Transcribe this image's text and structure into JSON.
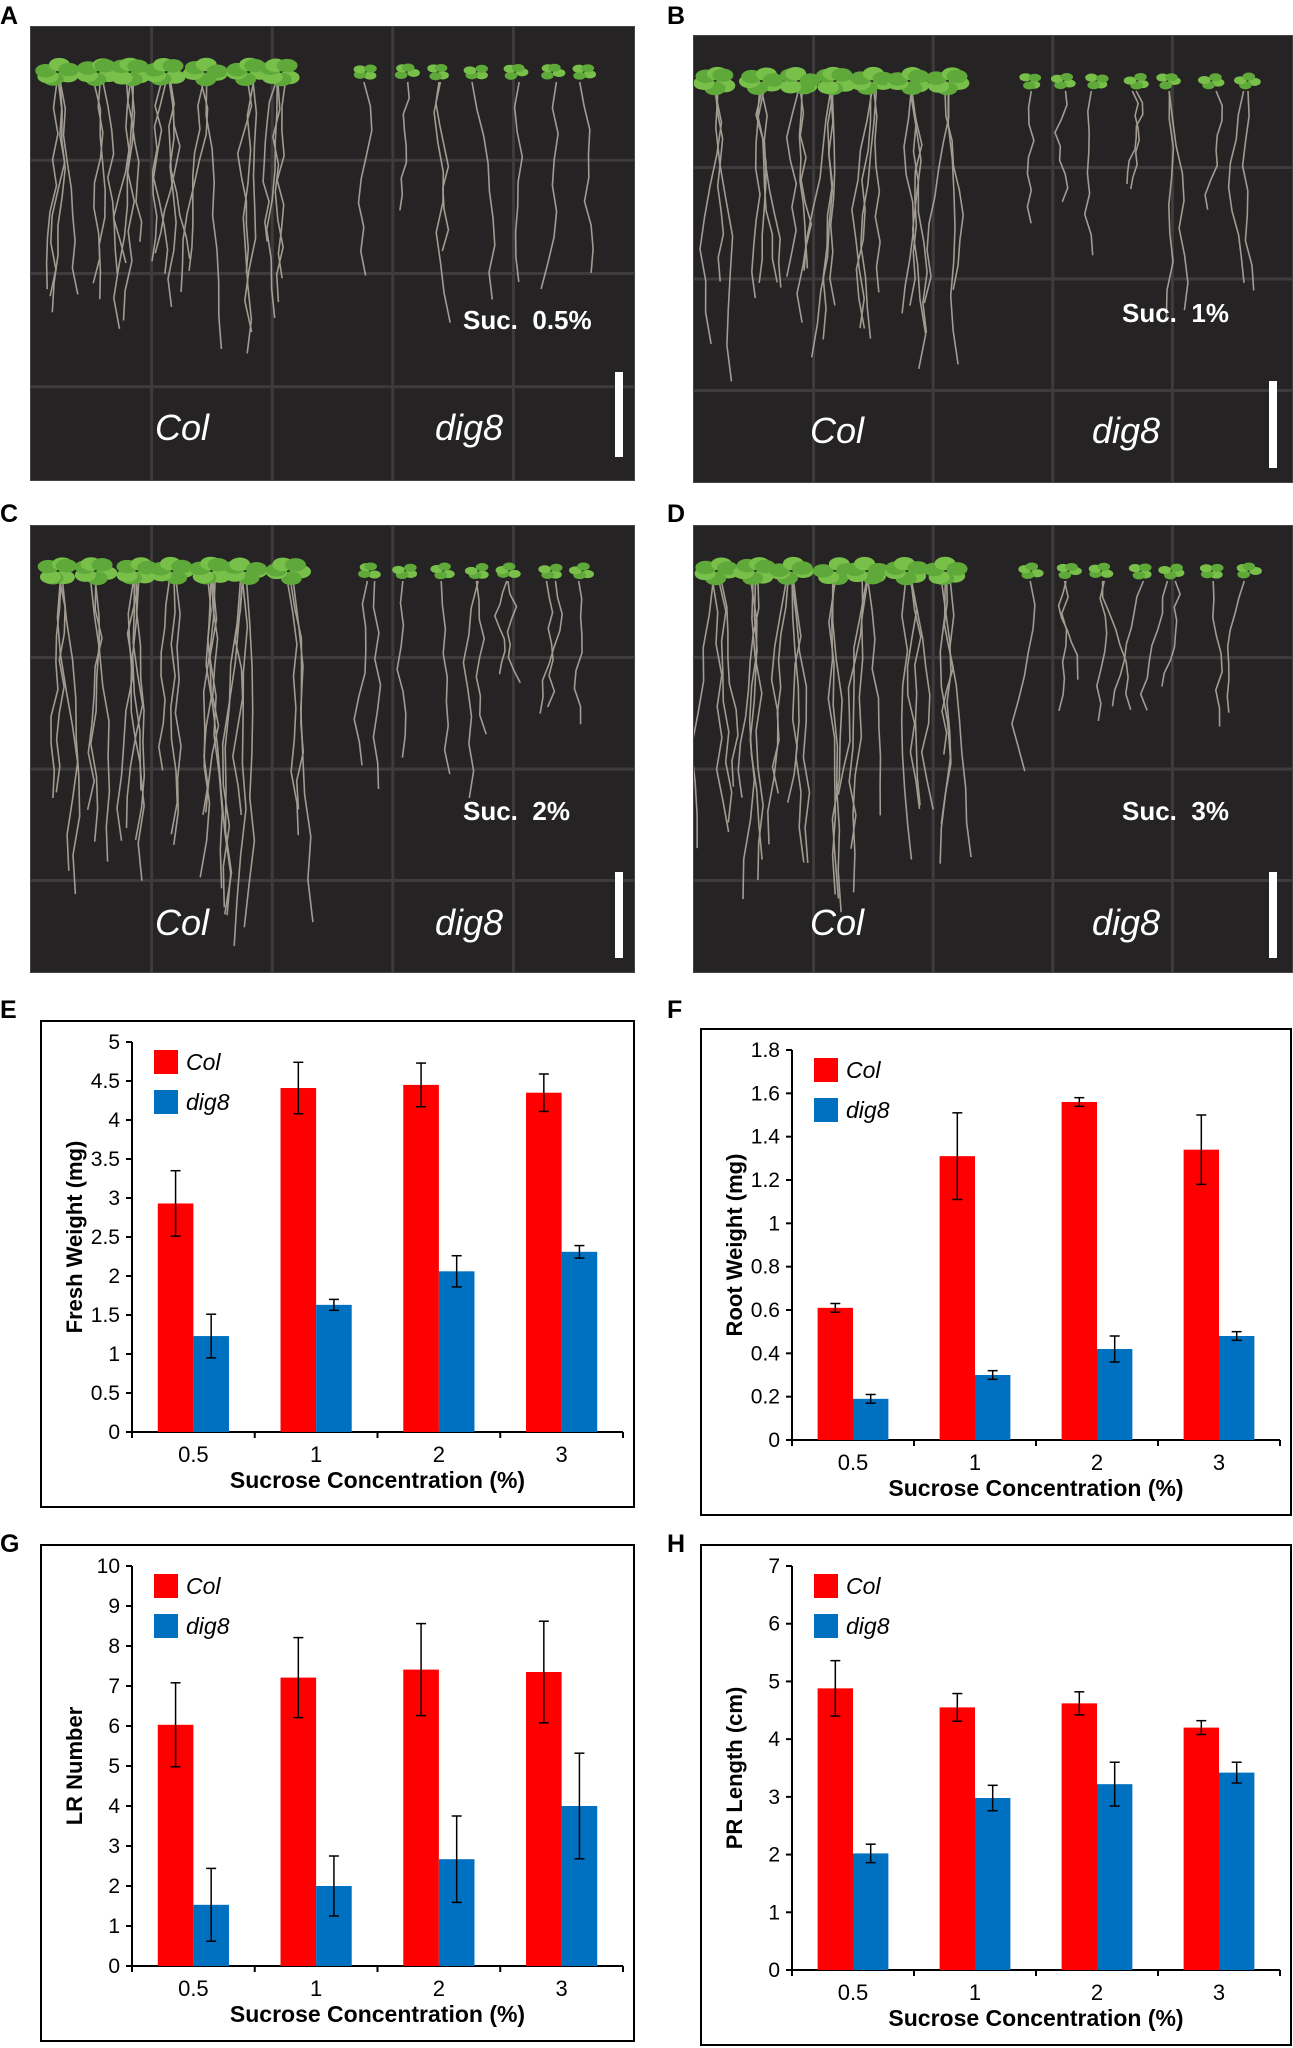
{
  "panels": {
    "A": {
      "letter": "A",
      "label": "Suc.  0.5%",
      "col": "Col",
      "mutant": "dig8"
    },
    "B": {
      "letter": "B",
      "label": "Suc.  1%",
      "col": "Col",
      "mutant": "dig8"
    },
    "C": {
      "letter": "C",
      "label": "Suc.  2%",
      "col": "Col",
      "mutant": "dig8"
    },
    "D": {
      "letter": "D",
      "label": "Suc.  3%",
      "col": "Col",
      "mutant": "dig8"
    }
  },
  "colors": {
    "col": "#ff0000",
    "dig8": "#0070c0"
  },
  "chart_data": [
    {
      "panel": "E",
      "type": "bar",
      "categories": [
        "0.5",
        "1",
        "2",
        "3"
      ],
      "xlabel": "Sucrose Concentration (%)",
      "ylabel": "Fresh Weight (mg)",
      "ylim": [
        0,
        5
      ],
      "yticks": [
        "0",
        "0.5",
        "1",
        "1.5",
        "2",
        "2.5",
        "3",
        "3.5",
        "4",
        "4.5",
        "5"
      ],
      "series": [
        {
          "name": "Col",
          "values": [
            2.93,
            4.41,
            4.45,
            4.35
          ],
          "errors": [
            0.42,
            0.33,
            0.28,
            0.24
          ]
        },
        {
          "name": "dig8",
          "values": [
            1.23,
            1.63,
            2.06,
            2.31
          ],
          "errors": [
            0.28,
            0.07,
            0.2,
            0.08
          ]
        }
      ]
    },
    {
      "panel": "F",
      "type": "bar",
      "categories": [
        "0.5",
        "1",
        "2",
        "3"
      ],
      "xlabel": "Sucrose Concentration (%)",
      "ylabel": "Root Weight (mg)",
      "ylim": [
        0,
        1.8
      ],
      "yticks": [
        "0",
        "0.2",
        "0.4",
        "0.6",
        "0.8",
        "1",
        "1.2",
        "1.4",
        "1.6",
        "1.8"
      ],
      "series": [
        {
          "name": "Col",
          "values": [
            0.61,
            1.31,
            1.56,
            1.34
          ],
          "errors": [
            0.02,
            0.2,
            0.02,
            0.16
          ]
        },
        {
          "name": "dig8",
          "values": [
            0.19,
            0.3,
            0.42,
            0.48
          ],
          "errors": [
            0.02,
            0.02,
            0.06,
            0.02
          ]
        }
      ]
    },
    {
      "panel": "G",
      "type": "bar",
      "categories": [
        "0.5",
        "1",
        "2",
        "3"
      ],
      "xlabel": "Sucrose Concentration (%)",
      "ylabel": "LR Number",
      "ylim": [
        0,
        10
      ],
      "yticks": [
        "0",
        "1",
        "2",
        "3",
        "4",
        "5",
        "6",
        "7",
        "8",
        "9",
        "10"
      ],
      "series": [
        {
          "name": "Col",
          "values": [
            6.03,
            7.21,
            7.41,
            7.35
          ],
          "errors": [
            1.05,
            1.0,
            1.15,
            1.27
          ]
        },
        {
          "name": "dig8",
          "values": [
            1.53,
            2.0,
            2.67,
            4.0
          ],
          "errors": [
            0.91,
            0.75,
            1.08,
            1.32
          ]
        }
      ]
    },
    {
      "panel": "H",
      "type": "bar",
      "categories": [
        "0.5",
        "1",
        "2",
        "3"
      ],
      "xlabel": "Sucrose Concentration (%)",
      "ylabel": "PR Length (cm)",
      "ylim": [
        0,
        7
      ],
      "yticks": [
        "0",
        "1",
        "2",
        "3",
        "4",
        "5",
        "6",
        "7"
      ],
      "series": [
        {
          "name": "Col",
          "values": [
            4.88,
            4.55,
            4.62,
            4.2
          ],
          "errors": [
            0.48,
            0.24,
            0.2,
            0.12
          ]
        },
        {
          "name": "dig8",
          "values": [
            2.02,
            2.98,
            3.22,
            3.42
          ],
          "errors": [
            0.16,
            0.22,
            0.38,
            0.18
          ]
        }
      ]
    }
  ]
}
